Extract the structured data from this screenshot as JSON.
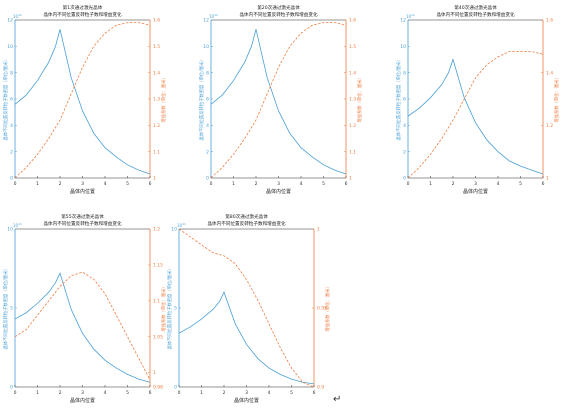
{
  "chart_data": [
    {
      "type": "line",
      "title": "第1次通过激光晶体",
      "subtitle": "晶体内不同位置反转粒子数和增益变化",
      "xlabel": "晶体内位置",
      "ylabel_left": "晶体不同位置反转粒子数密度（单位/厘米）",
      "ylabel_right": "增益系数（单位：厘米）",
      "left_exponent": "10",
      "xlim": [
        0,
        6
      ],
      "ylim_left": [
        0,
        12
      ],
      "ylim_right": [
        1,
        1.6
      ],
      "x_ticks": [
        "0",
        "1",
        "2",
        "3",
        "4",
        "5",
        "6"
      ],
      "left_ticks": [
        "0",
        "2",
        "4",
        "6",
        "8",
        "10",
        "12"
      ],
      "right_ticks": [
        "1",
        "1.1",
        "1.2",
        "1.3",
        "1.4",
        "1.5",
        "1.6"
      ],
      "series": [
        {
          "axis": "left",
          "style": "solid",
          "color": "#4a9fd6",
          "x": [
            0,
            0.5,
            1,
            1.5,
            1.8,
            2,
            2.5,
            3,
            3.5,
            4,
            4.5,
            5,
            5.5,
            6
          ],
          "y": [
            5.6,
            6.3,
            7.4,
            8.8,
            10.0,
            11.3,
            7.6,
            5.1,
            3.4,
            2.3,
            1.6,
            1.0,
            0.6,
            0.3
          ]
        },
        {
          "axis": "right",
          "style": "dashed",
          "color": "#f07b3f",
          "x": [
            0,
            0.5,
            1,
            1.5,
            2,
            2.5,
            3,
            3.5,
            4,
            4.5,
            5,
            5.5,
            6
          ],
          "y": [
            1.0,
            1.04,
            1.09,
            1.15,
            1.22,
            1.32,
            1.42,
            1.5,
            1.55,
            1.58,
            1.59,
            1.59,
            1.58
          ]
        }
      ]
    },
    {
      "type": "line",
      "title": "第20次通过激光晶体",
      "subtitle": "晶体内不同位置反转粒子数和增益变化",
      "xlabel": "晶体内位置",
      "ylabel_left": "晶体不同位置反转粒子数密度（单位/厘米）",
      "ylabel_right": "增益系数（单位：厘米）",
      "left_exponent": "10",
      "xlim": [
        0,
        6
      ],
      "ylim_left": [
        0,
        12
      ],
      "ylim_right": [
        1,
        1.6
      ],
      "x_ticks": [
        "0",
        "1",
        "2",
        "3",
        "4",
        "5",
        "6"
      ],
      "left_ticks": [
        "0",
        "2",
        "4",
        "6",
        "8",
        "10",
        "12"
      ],
      "right_ticks": [
        "1",
        "1.1",
        "1.2",
        "1.3",
        "1.4",
        "1.5",
        "1.6"
      ],
      "series": [
        {
          "axis": "left",
          "style": "solid",
          "color": "#4a9fd6",
          "x": [
            0,
            0.5,
            1,
            1.5,
            1.8,
            2,
            2.5,
            3,
            3.5,
            4,
            4.5,
            5,
            5.5,
            6
          ],
          "y": [
            5.6,
            6.3,
            7.4,
            8.8,
            10.0,
            11.3,
            7.6,
            5.1,
            3.4,
            2.3,
            1.6,
            1.0,
            0.6,
            0.3
          ]
        },
        {
          "axis": "right",
          "style": "dashed",
          "color": "#f07b3f",
          "x": [
            0,
            0.5,
            1,
            1.5,
            2,
            2.5,
            3,
            3.5,
            4,
            4.5,
            5,
            5.5,
            6
          ],
          "y": [
            1.0,
            1.04,
            1.09,
            1.15,
            1.22,
            1.32,
            1.42,
            1.5,
            1.55,
            1.58,
            1.59,
            1.59,
            1.58
          ]
        }
      ]
    },
    {
      "type": "line",
      "title": "第40次通过激光晶体",
      "subtitle": "晶体内不同位置反转粒子数和增益变化",
      "xlabel": "晶体内位置",
      "ylabel_left": "晶体不同位置反转粒子数密度（单位/厘米）",
      "ylabel_right": "增益系数（单位：厘米）",
      "left_exponent": "10",
      "xlim": [
        0,
        6
      ],
      "ylim_left": [
        0,
        12
      ],
      "ylim_right": [
        1,
        1.6
      ],
      "x_ticks": [
        "0",
        "1",
        "2",
        "3",
        "4",
        "5",
        "6"
      ],
      "left_ticks": [
        "0",
        "2",
        "4",
        "6",
        "8",
        "10",
        "12"
      ],
      "right_ticks": [
        "1",
        "1.2",
        "1.4",
        "1.6"
      ],
      "series": [
        {
          "axis": "left",
          "style": "solid",
          "color": "#4a9fd6",
          "x": [
            0,
            0.5,
            1,
            1.5,
            1.8,
            2,
            2.5,
            3,
            3.5,
            4,
            4.5,
            5,
            5.5,
            6
          ],
          "y": [
            4.7,
            5.3,
            6.1,
            7.1,
            8.0,
            9.0,
            6.1,
            4.2,
            2.9,
            2.0,
            1.3,
            0.9,
            0.6,
            0.3
          ]
        },
        {
          "axis": "right",
          "style": "dashed",
          "color": "#f07b3f",
          "x": [
            0,
            0.5,
            1,
            1.5,
            2,
            2.5,
            3,
            3.5,
            4,
            4.5,
            5,
            5.5,
            6
          ],
          "y": [
            1.0,
            1.04,
            1.09,
            1.15,
            1.22,
            1.3,
            1.38,
            1.43,
            1.46,
            1.48,
            1.48,
            1.48,
            1.47
          ]
        }
      ]
    },
    {
      "type": "line",
      "title": "第55次通过激光晶体",
      "subtitle": "晶体内不同位置反转粒子数和增益变化",
      "xlabel": "晶体内位置",
      "ylabel_left": "晶体不同位置反转粒子数密度（单位/厘米）",
      "ylabel_right": "增益系数（单位：厘米）",
      "left_exponent": "10",
      "xlim": [
        0,
        6
      ],
      "ylim_left": [
        0,
        10
      ],
      "ylim_right": [
        0.98,
        1.2
      ],
      "x_ticks": [
        "0",
        "1",
        "2",
        "3",
        "4",
        "5",
        "6"
      ],
      "left_ticks": [
        "0",
        "5",
        "10"
      ],
      "right_ticks": [
        "0.98",
        "1",
        "1.05",
        "1.1",
        "1.15",
        "1.2"
      ],
      "series": [
        {
          "axis": "left",
          "style": "solid",
          "color": "#4a9fd6",
          "x": [
            0,
            0.5,
            1,
            1.5,
            1.8,
            2,
            2.5,
            3,
            3.5,
            4,
            4.5,
            5,
            5.5,
            6
          ],
          "y": [
            4.3,
            4.7,
            5.3,
            6.0,
            6.6,
            7.2,
            4.9,
            3.4,
            2.4,
            1.7,
            1.2,
            0.8,
            0.5,
            0.3
          ]
        },
        {
          "axis": "right",
          "style": "dashed",
          "color": "#f07b3f",
          "x": [
            0,
            0.5,
            1,
            1.5,
            2,
            2.5,
            3,
            3.5,
            4,
            4.5,
            5,
            5.5,
            6
          ],
          "y": [
            1.05,
            1.06,
            1.08,
            1.1,
            1.12,
            1.135,
            1.14,
            1.13,
            1.11,
            1.08,
            1.05,
            1.02,
            0.99
          ]
        }
      ]
    },
    {
      "type": "line",
      "title": "第80次通过激光晶体",
      "subtitle": "晶体内不同位置反转粒子数和增益变化",
      "xlabel": "晶体内位置",
      "ylabel_left": "晶体不同位置反转粒子数密度（单位/厘米）",
      "ylabel_right": "增益系数（单位：厘米）",
      "left_exponent": "10",
      "xlim": [
        0,
        6
      ],
      "ylim_left": [
        0,
        10
      ],
      "ylim_right": [
        0.9,
        1
      ],
      "x_ticks": [
        "0",
        "1",
        "2",
        "3",
        "4",
        "5",
        "6"
      ],
      "left_ticks": [
        "0",
        "5",
        "10"
      ],
      "right_ticks": [
        "0.9",
        "0.95",
        "1"
      ],
      "series": [
        {
          "axis": "left",
          "style": "solid",
          "color": "#4a9fd6",
          "x": [
            0,
            0.5,
            1,
            1.5,
            1.8,
            2,
            2.5,
            3,
            3.5,
            4,
            4.5,
            5,
            5.5,
            6
          ],
          "y": [
            3.4,
            3.8,
            4.3,
            4.9,
            5.4,
            6.0,
            4.0,
            2.7,
            1.8,
            1.2,
            0.8,
            0.5,
            0.3,
            0.2
          ]
        },
        {
          "axis": "right",
          "style": "dashed",
          "color": "#f07b3f",
          "x": [
            0,
            0.5,
            1,
            1.5,
            2,
            2.5,
            3,
            3.5,
            4,
            4.5,
            5,
            5.5,
            6
          ],
          "y": [
            1.0,
            0.995,
            0.99,
            0.985,
            0.983,
            0.978,
            0.968,
            0.955,
            0.94,
            0.925,
            0.912,
            0.903,
            0.9
          ]
        }
      ]
    }
  ],
  "page": {
    "return_mark": "↵"
  }
}
